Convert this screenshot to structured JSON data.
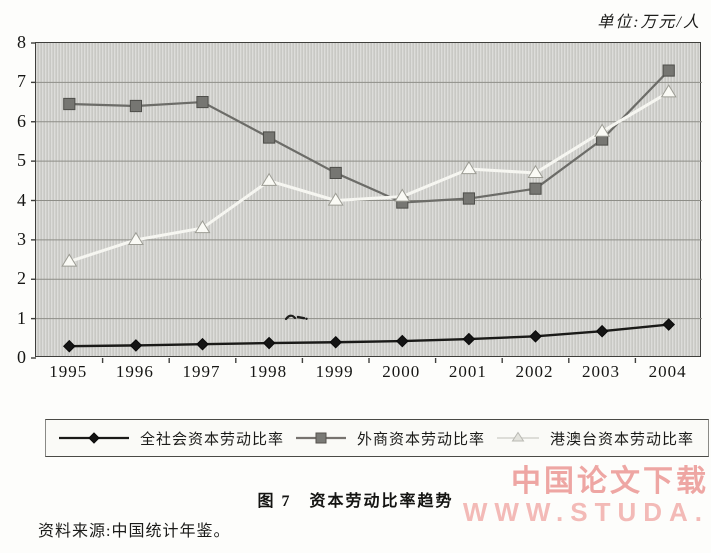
{
  "unit_label": "单位:万元/人",
  "caption": "图 7　资本劳动比率趋势",
  "source_note": "资料来源:中国统计年鉴。",
  "watermark": {
    "line1": "中国论文下载",
    "line2": "WWW.STUDA.",
    "color1": "#eea6a3",
    "color2": "#f3bab7"
  },
  "chart_data": {
    "type": "line",
    "title": "图7 资本劳动比率趋势",
    "unit": "万元/人",
    "categories": [
      "1995",
      "1996",
      "1997",
      "1998",
      "1999",
      "2000",
      "2001",
      "2002",
      "2003",
      "2004"
    ],
    "series": [
      {
        "name": "全社会资本劳动比率",
        "marker": "diamond",
        "color": "#141414",
        "edge": "#0a0a0a",
        "line_color": "#1a1a18",
        "line_width": 2.4,
        "values": [
          0.3,
          0.32,
          0.35,
          0.38,
          0.4,
          0.43,
          0.48,
          0.55,
          0.68,
          0.85
        ]
      },
      {
        "name": "外商资本劳动比率",
        "marker": "square",
        "color": "#767672",
        "edge": "#4e4e4a",
        "line_color": "#6c6c68",
        "line_width": 2.2,
        "values": [
          6.45,
          6.4,
          6.5,
          5.6,
          4.7,
          3.95,
          4.05,
          4.3,
          5.55,
          7.3
        ]
      },
      {
        "name": "港澳台资本劳动比率",
        "marker": "triangle",
        "color": "#fafaf5",
        "edge": "#9c9c94",
        "line_color": "#f6f6f1",
        "line_width": 3,
        "values": [
          2.45,
          3.0,
          3.3,
          4.5,
          4.0,
          4.1,
          4.8,
          4.7,
          5.75,
          6.75
        ]
      }
    ],
    "ylim": [
      0,
      8
    ],
    "ytick_step": 1,
    "grid": "horizontal",
    "gridline_color": "#8e8e88",
    "plot_background": "#d3d3cf",
    "legend_position": "bottom"
  }
}
